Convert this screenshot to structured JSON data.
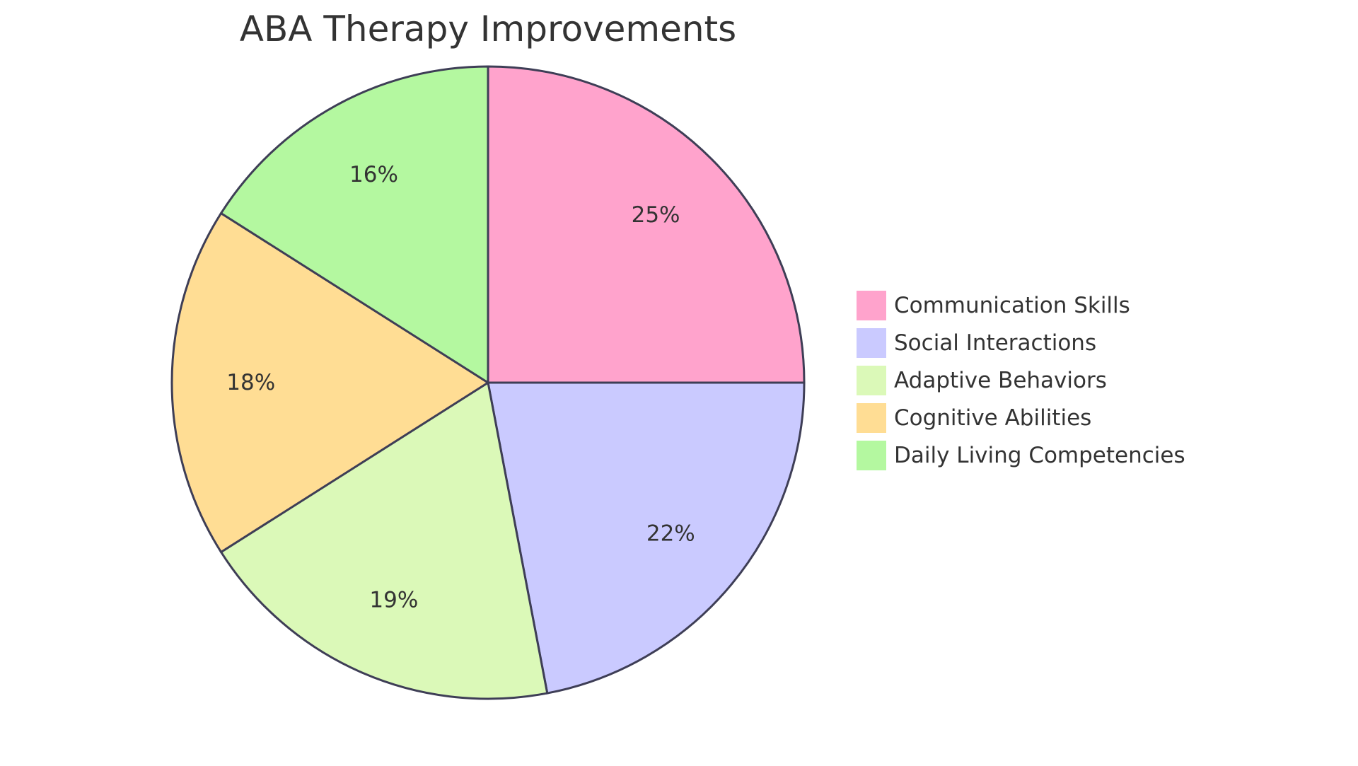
{
  "chart_data": {
    "type": "pie",
    "title": "ABA Therapy Improvements",
    "categories": [
      "Communication Skills",
      "Social Interactions",
      "Adaptive Behaviors",
      "Cognitive Abilities",
      "Daily Living Competencies"
    ],
    "values": [
      25,
      22,
      19,
      18,
      16
    ],
    "value_labels": [
      "25%",
      "22%",
      "19%",
      "18%",
      "16%"
    ],
    "colors": [
      "#FFA3CC",
      "#CACAFF",
      "#DBF9B8",
      "#FFDD94",
      "#B4F8A0"
    ],
    "stroke_color": "#3E3E56",
    "legend_position": "right",
    "start_angle": "top",
    "direction": "clockwise"
  }
}
